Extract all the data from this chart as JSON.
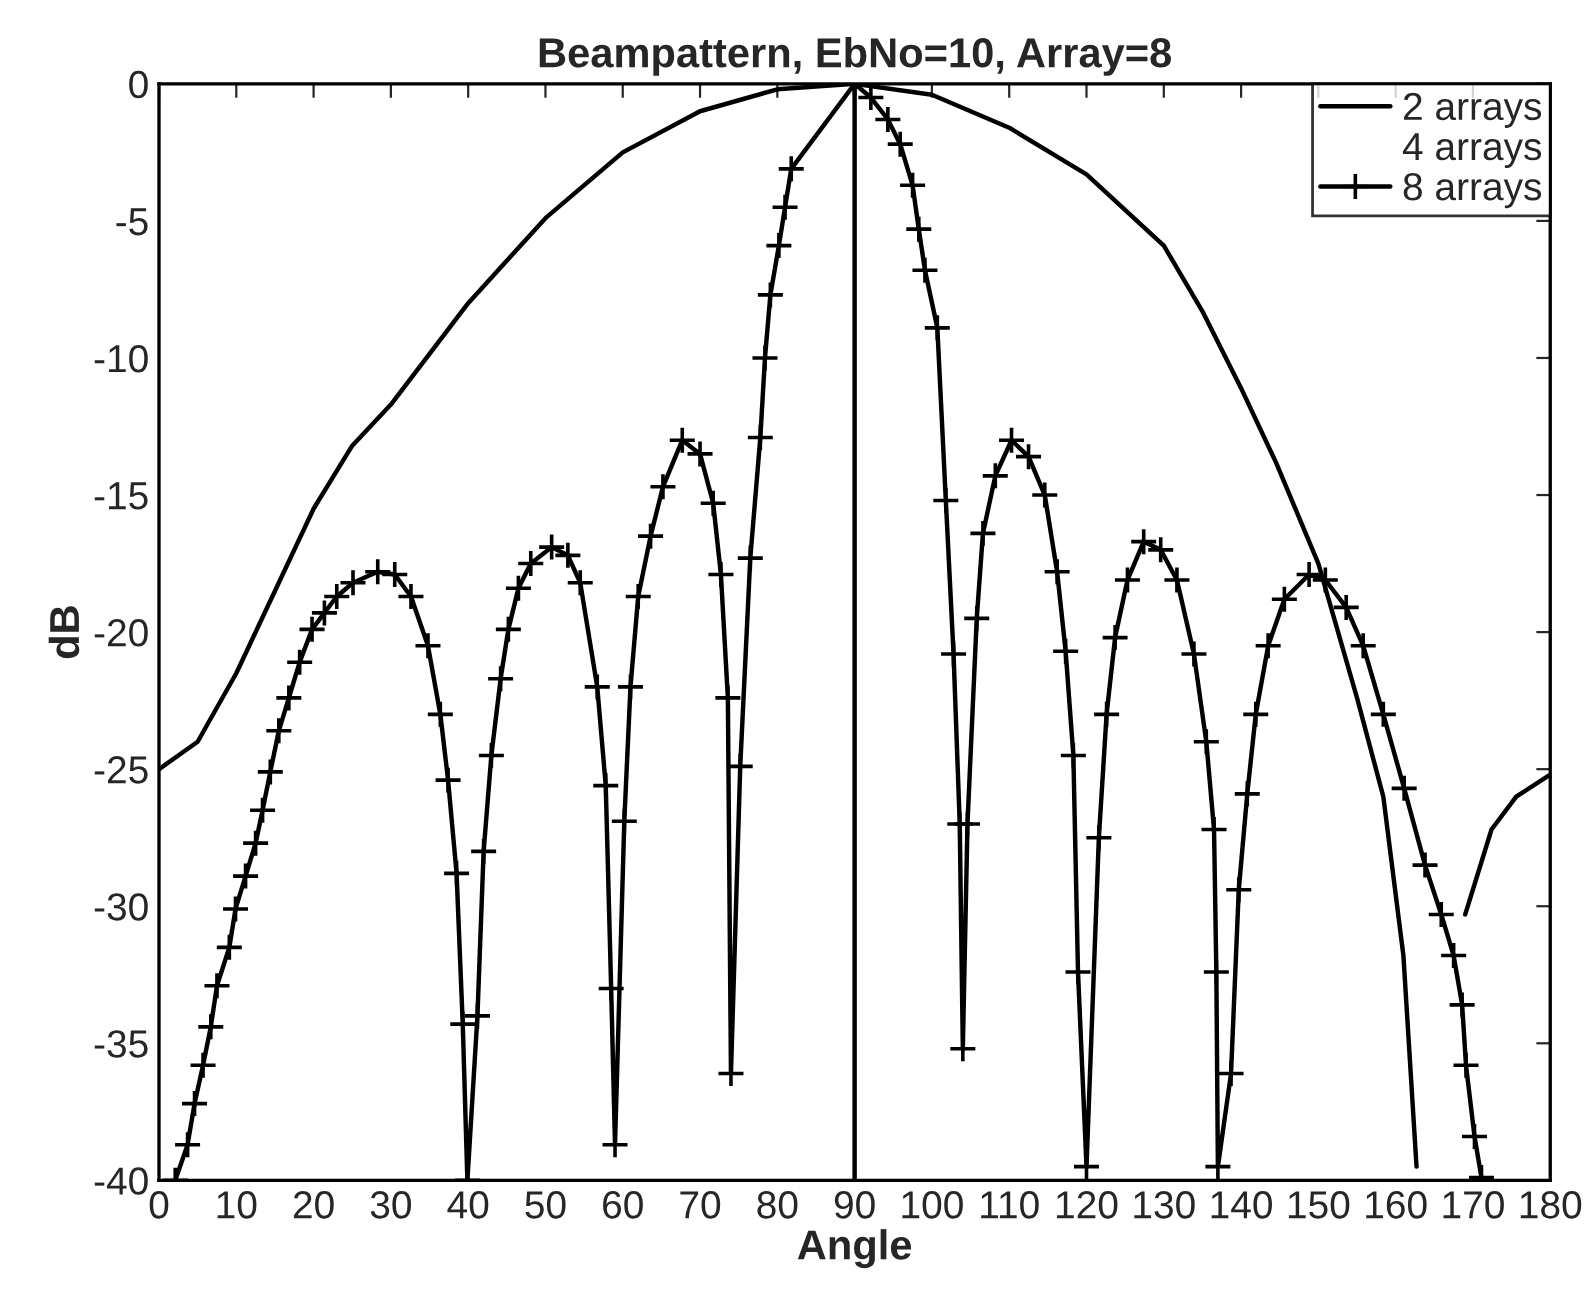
{
  "chart_data": {
    "type": "line",
    "title": "Beampattern, EbNo=10, Array=8",
    "xlabel": "Angle",
    "ylabel": "dB",
    "xlim": [
      0,
      180
    ],
    "xticks": [
      0,
      10,
      20,
      30,
      40,
      50,
      60,
      70,
      80,
      90,
      100,
      110,
      120,
      130,
      140,
      150,
      160,
      170,
      180
    ],
    "ylim": [
      -40,
      0
    ],
    "yticks": [
      -40,
      -35,
      -30,
      -25,
      -20,
      -15,
      -10,
      -5,
      0
    ],
    "grid": false,
    "legend": "top right",
    "ref_lines": [
      {
        "axis": "x",
        "value": 90,
        "color": "#000000"
      }
    ],
    "series": [
      {
        "name": "2 arrays",
        "color": "#000000",
        "marker": "none",
        "x": [
          0,
          5,
          10,
          15,
          20,
          25,
          30,
          40,
          50,
          60,
          70,
          80,
          90,
          100,
          110,
          120,
          130,
          135,
          140,
          144.5,
          150,
          155,
          158.4,
          161,
          162.7,
          165,
          169,
          172.4,
          175.6,
          180
        ],
        "values": [
          -25,
          -24,
          -21.5,
          -18.5,
          -15.5,
          -13.2,
          -11.7,
          -8,
          -4.9,
          -2.5,
          -1,
          -0.2,
          0,
          -0.4,
          -1.6,
          -3.3,
          -5.9,
          -8.3,
          -11.1,
          -13.8,
          -17.5,
          -22.4,
          -26,
          -31.8,
          -39.5,
          null,
          -30.3,
          -27.2,
          -26,
          -25.2
        ]
      },
      {
        "name": "4 arrays"
      },
      {
        "name": "8 arrays",
        "color": "#000000",
        "marker": "cross",
        "x": [
          2.1,
          3.7,
          4.6,
          5.7,
          6.7,
          7.5,
          9.1,
          9.9,
          11.2,
          12.5,
          13.4,
          14.4,
          15.5,
          16.8,
          18.2,
          19.8,
          21.4,
          23,
          25.1,
          28.3,
          30.5,
          32.6,
          34.8,
          36.4,
          37.4,
          38.5,
          39.3,
          39.9,
          41.2,
          42,
          43,
          44.2,
          45.2,
          46.5,
          48.1,
          50.8,
          52.9,
          54.5,
          56.7,
          57.8,
          58.5,
          59,
          60.2,
          61,
          62,
          63.6,
          65.2,
          67.7,
          70,
          71.7,
          72.7,
          73.6,
          74,
          75.2,
          76.5,
          77.8,
          78.4,
          79.1,
          80.2,
          81,
          81.8,
          90,
          92.1,
          94.3,
          95.9,
          97.5,
          98.3,
          99.1,
          100.7,
          101.8,
          102.8,
          103.6,
          104,
          104.6,
          105.8,
          106.6,
          108.2,
          110.3,
          112.5,
          114.6,
          116.2,
          117.3,
          118.3,
          118.9,
          120,
          121.6,
          122.6,
          123.7,
          125.3,
          127.4,
          129.6,
          131.7,
          133.9,
          135.5,
          136.5,
          136.8,
          137,
          138.7,
          139.7,
          140.8,
          141.9,
          143.5,
          145.6,
          148.8,
          150.9,
          153.6,
          155.8,
          158.4,
          161.1,
          163.8,
          165.9,
          167.5,
          168.6,
          169.1,
          170.2,
          171.1
        ],
        "values": [
          -40,
          -38.7,
          -37.2,
          -35.8,
          -34.4,
          -32.9,
          -31.5,
          -30.1,
          -28.9,
          -27.7,
          -26.5,
          -25.1,
          -23.6,
          -22.4,
          -21.1,
          -19.9,
          -19.3,
          -18.7,
          -18.2,
          -17.8,
          -17.9,
          -18.7,
          -20.5,
          -23,
          -25.4,
          -28.8,
          -34.3,
          -40,
          -34,
          -28,
          -24.5,
          -21.7,
          -19.9,
          -18.4,
          -17.5,
          -16.9,
          -17.2,
          -18.2,
          -22,
          -25.6,
          -33,
          -38.7,
          -26.9,
          -22,
          -18.7,
          -16.5,
          -14.7,
          -13,
          -13.5,
          -15.3,
          -17.9,
          -22.4,
          -36.1,
          -24.9,
          -17.3,
          -12.9,
          -10,
          -7.7,
          -5.9,
          -4.5,
          -3.1,
          0,
          -0.5,
          -1.3,
          -2.2,
          -3.7,
          -5.3,
          -6.8,
          -8.9,
          -15.2,
          -20.8,
          -27,
          -35.2,
          -27,
          -19.5,
          -16.4,
          -14.3,
          -13,
          -13.6,
          -15,
          -17.8,
          -20.7,
          -24.5,
          -32.4,
          -39.5,
          -27.5,
          -23,
          -20.2,
          -18.1,
          -16.7,
          -17,
          -18.1,
          -20.8,
          -24,
          -27.2,
          -32.4,
          -39.5,
          -36.1,
          -29.4,
          -25.9,
          -23,
          -20.5,
          -18.8,
          -17.9,
          -18.1,
          -19.1,
          -20.5,
          -23,
          -25.7,
          -28.5,
          -30.3,
          -31.8,
          -33.6,
          -35.8,
          -38.4,
          -39.9
        ]
      }
    ]
  }
}
